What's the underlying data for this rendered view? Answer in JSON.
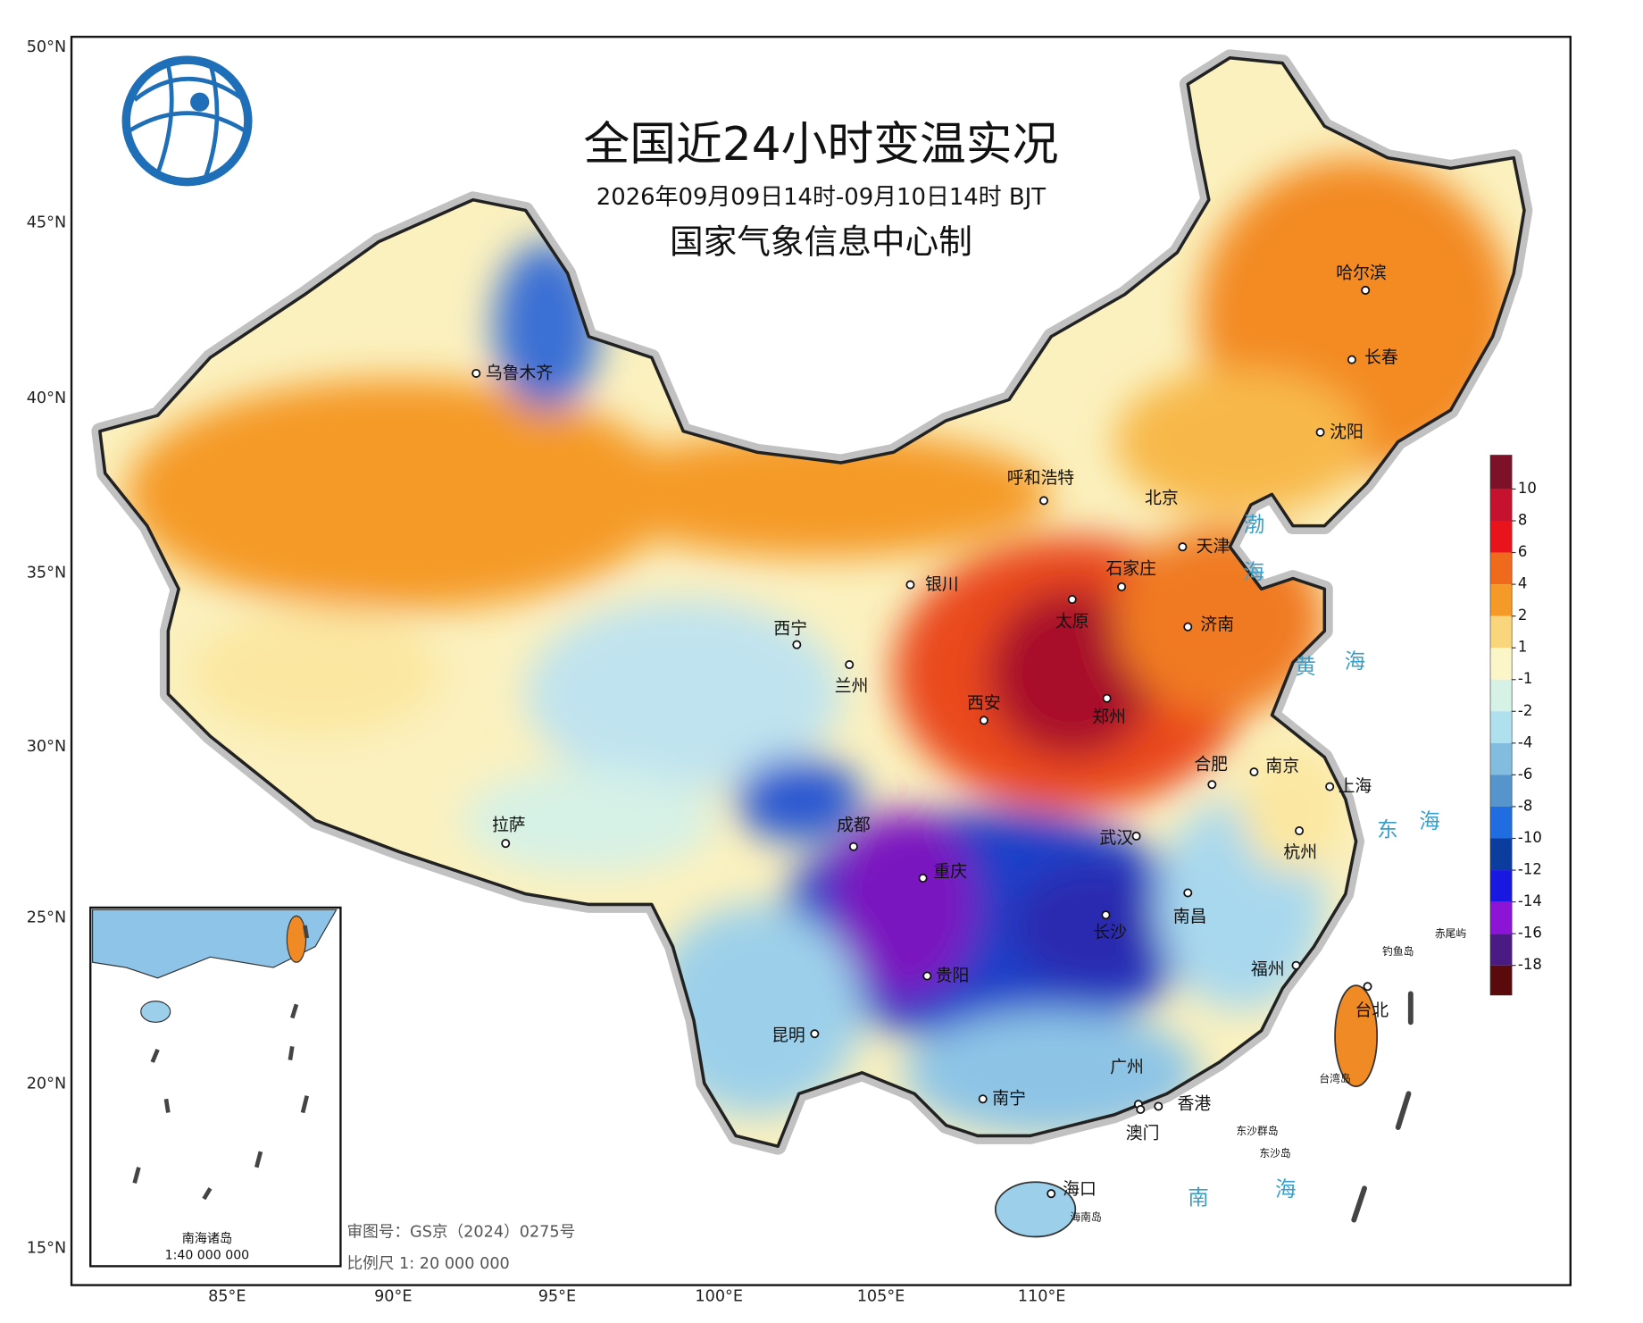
{
  "header": {
    "title": "全国近24小时变温实况",
    "subtitle": "2026年09月09日14时-09月10日14时 BJT",
    "producer": "国家气象信息中心制"
  },
  "axes": {
    "lat_labels": [
      "50°N",
      "45°N",
      "40°N",
      "35°N",
      "30°N",
      "25°N",
      "20°N",
      "15°N"
    ],
    "lon_labels": [
      "85°E",
      "90°E",
      "95°E",
      "100°E",
      "105°E",
      "110°E"
    ]
  },
  "legend": {
    "ticks": [
      10,
      8,
      6,
      4,
      2,
      1,
      -1,
      -2,
      -4,
      -6,
      -8,
      -10,
      -12,
      -14,
      -16,
      -18
    ],
    "colors": [
      "#7d1128",
      "#c4122f",
      "#e8131b",
      "#ef6a1c",
      "#f59a28",
      "#f9d57c",
      "#fbf6c8",
      "#d6f1e6",
      "#aee0ee",
      "#82bde0",
      "#5694cc",
      "#1f6de0",
      "#0b3d9e",
      "#1818e0",
      "#8c14d6",
      "#4b1b84",
      "#5a0a0a"
    ]
  },
  "cities": [
    "乌鲁木齐",
    "呼和浩特",
    "北京",
    "天津",
    "石家庄",
    "银川",
    "太原",
    "济南",
    "西宁",
    "兰州",
    "西安",
    "郑州",
    "合肥",
    "南京",
    "上海",
    "成都",
    "武汉",
    "杭州",
    "重庆",
    "拉萨",
    "南昌",
    "长沙",
    "贵阳",
    "福州",
    "台北",
    "昆明",
    "广州",
    "南宁",
    "香港",
    "澳门",
    "海口",
    "哈尔滨",
    "长春",
    "沈阳"
  ],
  "places": [
    "海南岛",
    "钓鱼岛",
    "赤尾屿",
    "台湾岛",
    "东沙群岛",
    "东沙岛"
  ],
  "seas": [
    "渤",
    "海",
    "黄",
    "海",
    "东",
    "海",
    "南",
    "海"
  ],
  "inset": {
    "title": "南海诸岛",
    "scale": "1:40 000 000"
  },
  "footer": {
    "review_number": "审图号：GS京（2024）0275号",
    "scale": "比例尺 1: 20 000 000"
  }
}
